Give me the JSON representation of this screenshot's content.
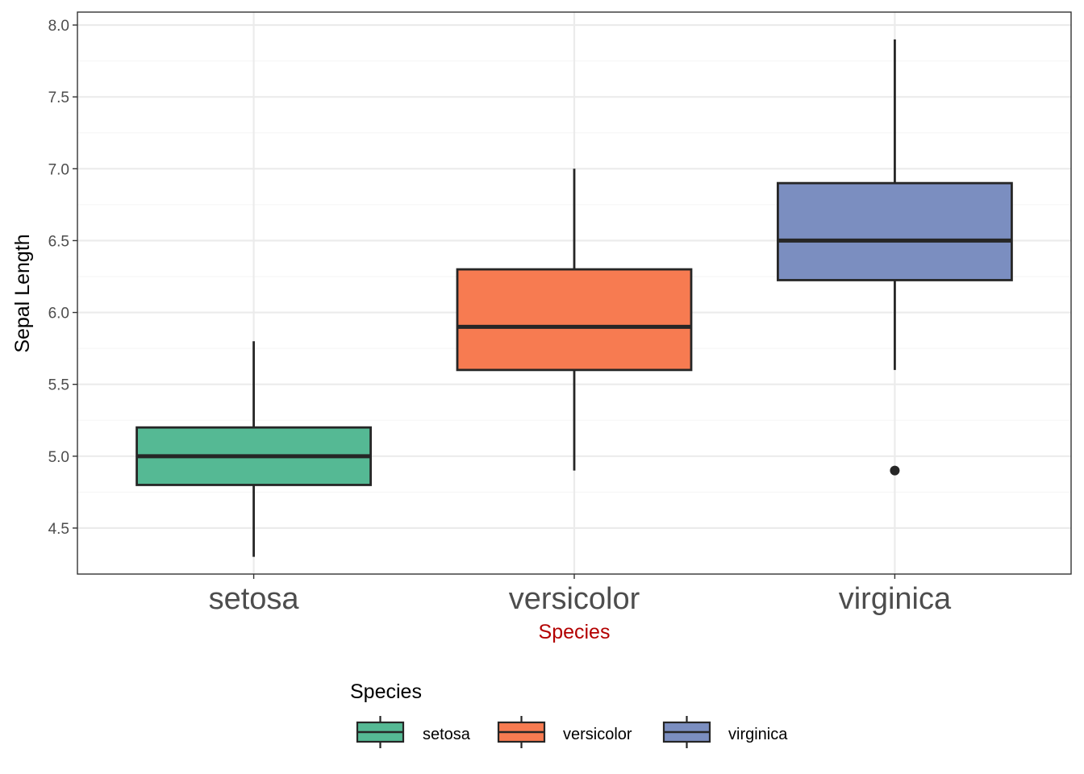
{
  "chart_data": {
    "type": "boxplot",
    "xlabel": "Species",
    "ylabel": "Sepal Length",
    "ylim": [
      4.18,
      8.09
    ],
    "yticks": [
      "4.5",
      "5.0",
      "5.5",
      "6.0",
      "6.5",
      "7.0",
      "7.5",
      "8.0"
    ],
    "grid": true,
    "categories": [
      "setosa",
      "versicolor",
      "virginica"
    ],
    "series": [
      {
        "name": "setosa",
        "color": "#55b994",
        "min": 4.3,
        "q1": 4.8,
        "median": 5.0,
        "q3": 5.2,
        "max": 5.8,
        "outliers": []
      },
      {
        "name": "versicolor",
        "color": "#f77b51",
        "min": 4.9,
        "q1": 5.6,
        "median": 5.9,
        "q3": 6.3,
        "max": 7.0,
        "outliers": []
      },
      {
        "name": "virginica",
        "color": "#7b8ec0",
        "min": 5.6,
        "q1": 6.225,
        "median": 6.5,
        "q3": 6.9,
        "max": 7.9,
        "outliers": [
          4.9
        ]
      }
    ],
    "legend": {
      "title": "Species",
      "position": "bottom",
      "entries": [
        "setosa",
        "versicolor",
        "virginica"
      ]
    },
    "colors": {
      "xlabel": "#b30000",
      "axis_text": "#4d4d4d",
      "grid": "#ebebeb",
      "box_line": "#262626"
    }
  }
}
